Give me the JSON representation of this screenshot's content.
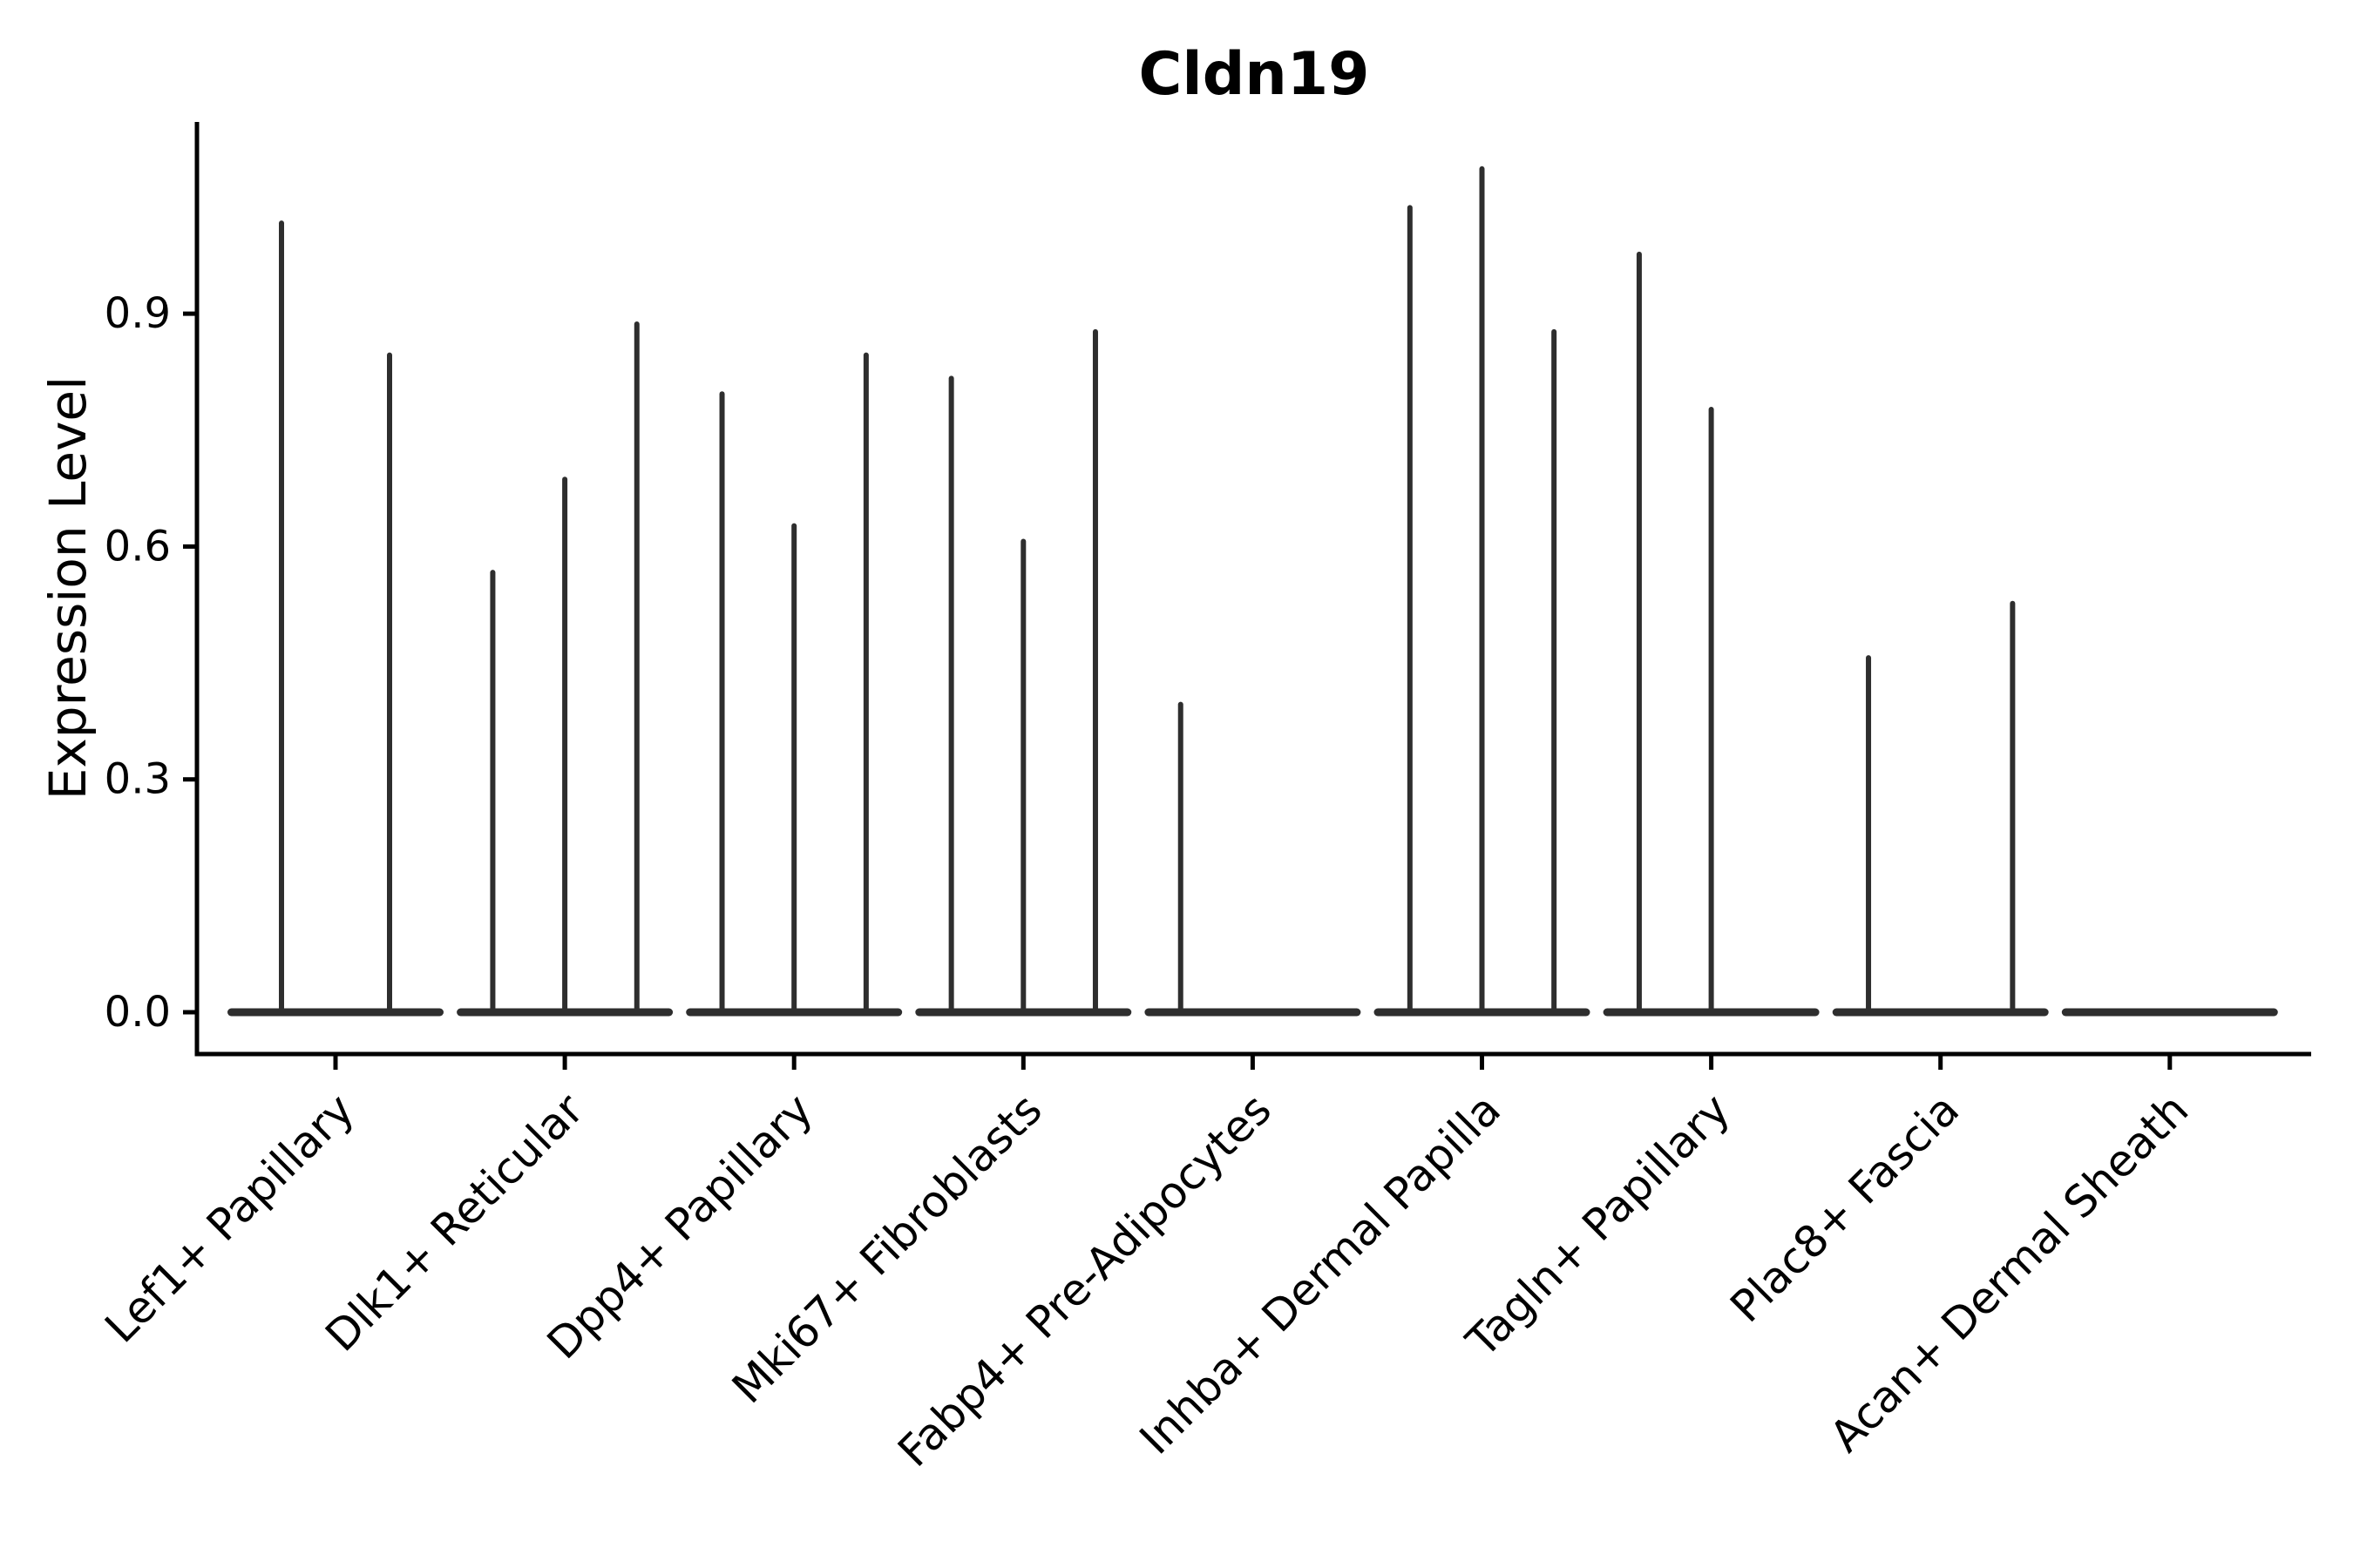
{
  "title": "Cldn19",
  "axes": {
    "ylabel": "Expression Level",
    "ytick_labels": [
      "0.0",
      "0.3",
      "0.6",
      "0.9"
    ]
  },
  "chart_data": {
    "type": "violin",
    "title": "Cldn19",
    "xlabel": "",
    "ylabel": "Expression Level",
    "yticks": [
      0.0,
      0.3,
      0.6,
      0.9
    ],
    "ytick_labels": [
      "0.0",
      "0.3",
      "0.6",
      "0.9"
    ],
    "ylim": [
      -0.054,
      1.147
    ],
    "grid": false,
    "legend": "none",
    "categories": [
      "Lef1+ Papillary",
      "Dlk1+ Reticular",
      "Dpp4+ Papillary",
      "Mki67+ Fibroblasts",
      "Fabp4+ Pre-Adipocytes",
      "Inhba+ Dermal Papilla",
      "Tagln+ Papillary",
      "Plac8+ Fascia",
      "Acan+ Dermal Sheath"
    ],
    "groups": [
      {
        "category": "Lef1+ Papillary",
        "violin_maxima": [
          1.02,
          0.85
        ]
      },
      {
        "category": "Dlk1+ Reticular",
        "violin_maxima": [
          0.57,
          0.69,
          0.89
        ]
      },
      {
        "category": "Dpp4+ Papillary",
        "violin_maxima": [
          0.8,
          0.63,
          0.85
        ]
      },
      {
        "category": "Mki67+ Fibroblasts",
        "violin_maxima": [
          0.82,
          0.61,
          0.88
        ]
      },
      {
        "category": "Fabp4+ Pre-Adipocytes",
        "violin_maxima": [
          0.4,
          0,
          0
        ]
      },
      {
        "category": "Inhba+ Dermal Papilla",
        "violin_maxima": [
          1.04,
          1.09,
          0.88
        ]
      },
      {
        "category": "Tagln+ Papillary",
        "violin_maxima": [
          0.98,
          0.78,
          0
        ]
      },
      {
        "category": "Plac8+ Fascia",
        "violin_maxima": [
          0.46,
          0,
          0.53
        ]
      },
      {
        "category": "Acan+ Dermal Sheath",
        "violin_maxima": [
          0,
          0,
          0
        ]
      }
    ],
    "colors": {
      "violin": "#2e2e2e",
      "axis": "#000000",
      "text": "#000000"
    }
  }
}
